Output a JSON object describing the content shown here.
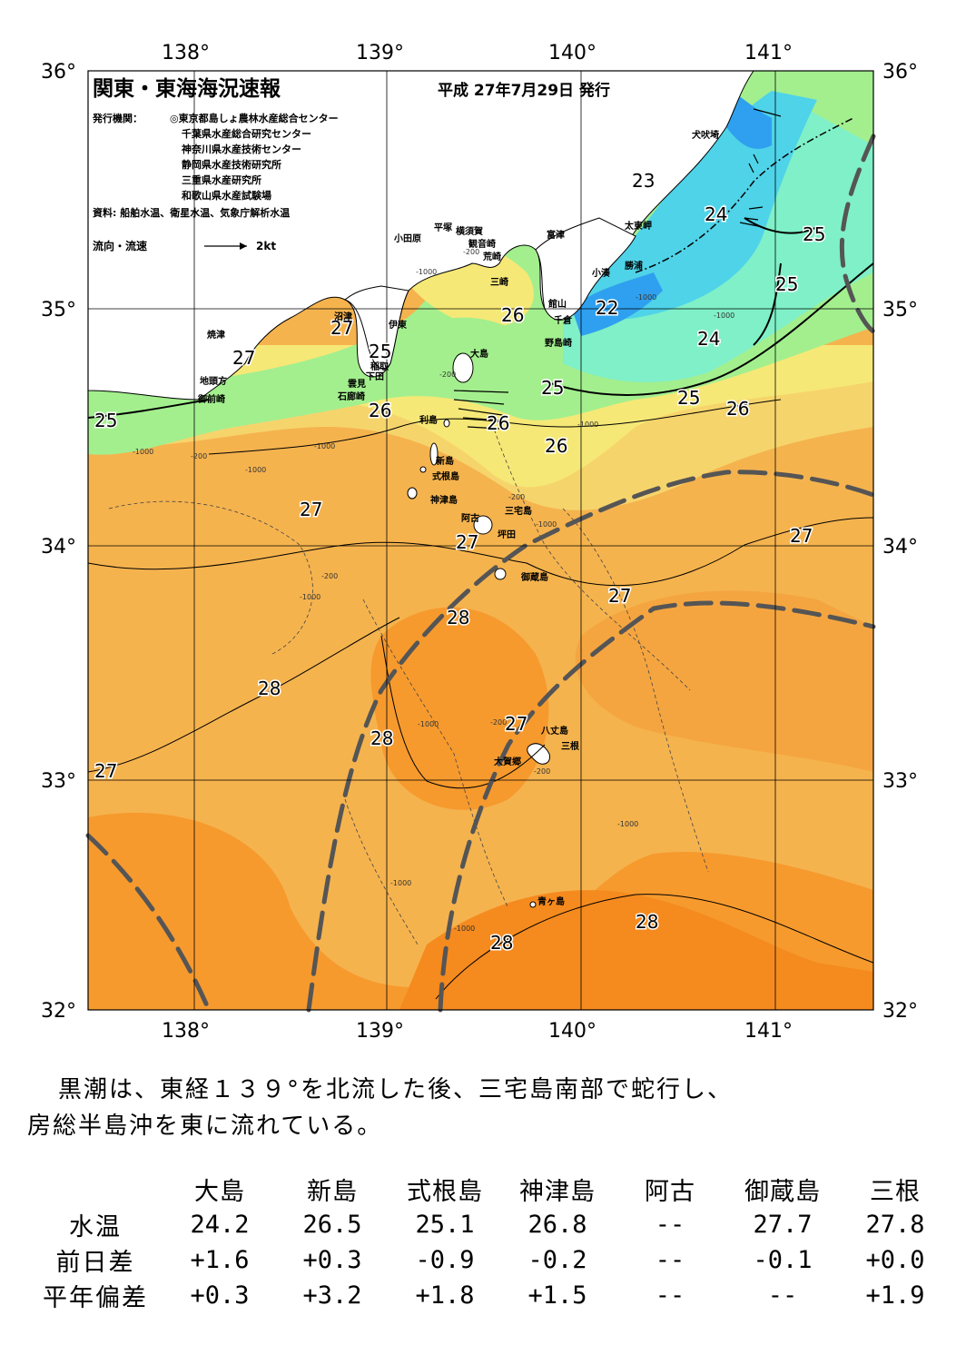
{
  "header": {
    "title": "関東・東海海況速報",
    "date": "平成 27年7月29日 発行",
    "publisher_label": "発行機関：",
    "publishers": [
      "◎東京都島しょ農林水産総合センター",
      "千葉県水産総合研究センター",
      "神奈川県水産技術センター",
      "静岡県水産技術研究所",
      "三重県水産研究所",
      "和歌山県水産試験場"
    ],
    "source": "資料: 船舶水温、衛星水温、気象庁解析水温",
    "legend_label": "流向・流速",
    "legend_scale": "2kt"
  },
  "axes": {
    "lon_labels": [
      "138°",
      "139°",
      "140°",
      "141°"
    ],
    "lat_labels": [
      "36°",
      "35°",
      "34°",
      "33°",
      "32°"
    ]
  },
  "isotherm_labels": [
    "23",
    "24",
    "25",
    "25",
    "25",
    "26",
    "22",
    "24",
    "25",
    "26",
    "27",
    "27",
    "25",
    "26",
    "25",
    "26",
    "26",
    "27",
    "27",
    "27",
    "27",
    "28",
    "27",
    "28",
    "28",
    "27",
    "28",
    "28"
  ],
  "depth_labels": [
    "-200",
    "-1000",
    "-200",
    "-1000",
    "-1000",
    "-200",
    "-1000",
    "-200",
    "-1000",
    "-200",
    "-1000",
    "-1000",
    "-200",
    "-200",
    "-1000",
    "-1000",
    "-1000",
    "-1000",
    "-1000",
    "-1000"
  ],
  "places": [
    "犬吠埼",
    "太東岬",
    "勝浦",
    "小湊",
    "富津",
    "館山",
    "千倉",
    "野島崎",
    "観音崎",
    "荒崎",
    "三崎",
    "横須賀",
    "平塚",
    "小田原",
    "大島",
    "沼津",
    "伊東",
    "稲取",
    "下田",
    "雲見",
    "石廊崎",
    "焼津",
    "地頭方",
    "御前崎",
    "利島",
    "新島",
    "式根島",
    "神津島",
    "三宅島",
    "阿古",
    "坪田",
    "御蔵島",
    "八丈島",
    "三根",
    "大賀郷",
    "青ヶ島"
  ],
  "colors": {
    "t22": "#2fa0ef",
    "t23": "#4fd3e8",
    "t24": "#7ff0c8",
    "t25": "#a3ef8e",
    "t26": "#f6e876",
    "t26b": "#f6d46c",
    "t27": "#f5b34e",
    "t27b": "#f5a540",
    "t28": "#f69a2e",
    "t28b": "#f58a1e",
    "land": "#ffffff",
    "kuroshio_axis": "#555555"
  },
  "summary": {
    "line1": "黒潮は、東経１３９°を北流した後、三宅島南部で蛇行し、",
    "line2": "房総半島沖を東に流れている。"
  },
  "observations": {
    "stations": [
      "大島",
      "新島",
      "式根島",
      "神津島",
      "阿古",
      "御蔵島",
      "三根"
    ],
    "rows": [
      {
        "label": "水温",
        "values": [
          "24.2",
          "26.5",
          "25.1",
          "26.8",
          "--",
          "27.7",
          "27.8"
        ]
      },
      {
        "label": "前日差",
        "values": [
          "+1.6",
          "+0.3",
          "-0.9",
          "-0.2",
          "--",
          "-0.1",
          "+0.0"
        ]
      },
      {
        "label": "平年偏差",
        "values": [
          "+0.3",
          "+3.2",
          "+1.8",
          "+1.5",
          "--",
          "--",
          "+1.9"
        ]
      }
    ]
  }
}
